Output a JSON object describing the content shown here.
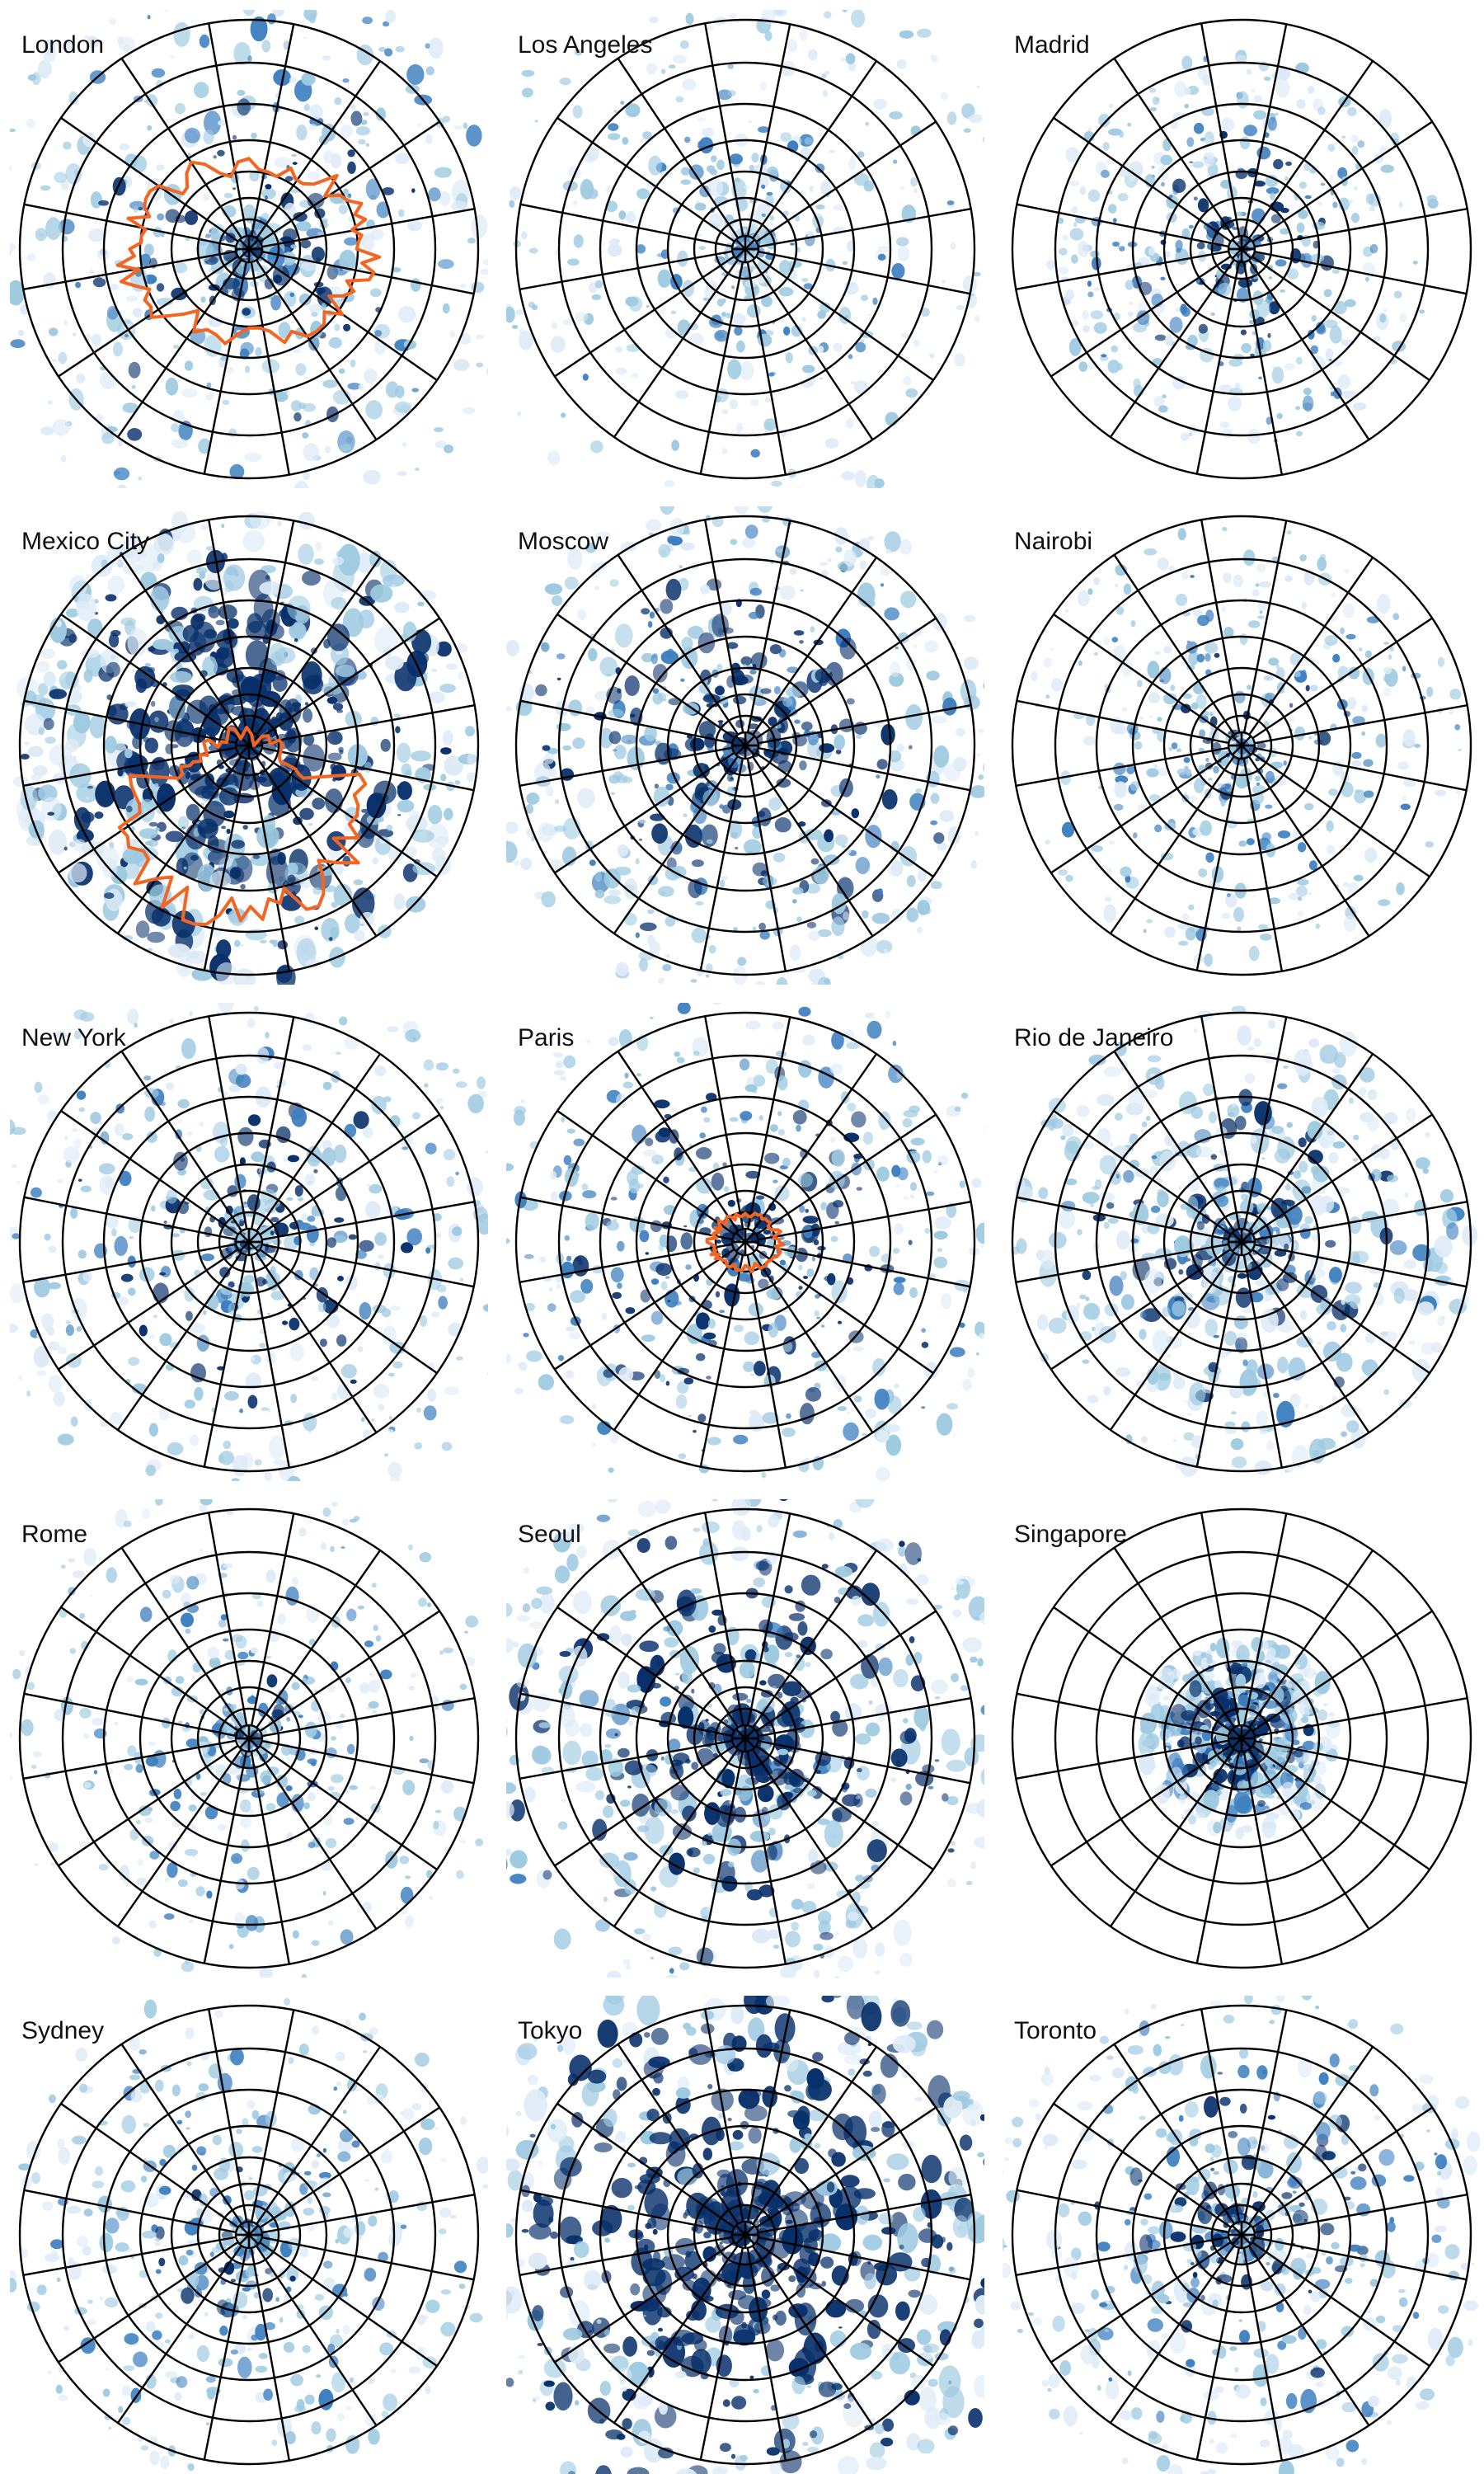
{
  "colors": {
    "dense": "#08306b",
    "mid": "#3d7fc0",
    "light": "#9ecae1",
    "faint": "#deebf7",
    "grid": "#000000",
    "boundary": "#f26522"
  },
  "cities": [
    {
      "name": "London",
      "density": 0.55,
      "spread": 0.95,
      "core": 0.55,
      "boundary": "large"
    },
    {
      "name": "Los Angeles",
      "density": 0.35,
      "spread": 0.95,
      "core": 0.3,
      "boundary": "none"
    },
    {
      "name": "Madrid",
      "density": 0.3,
      "spread": 0.6,
      "core": 0.75,
      "boundary": "none"
    },
    {
      "name": "Mexico City",
      "density": 0.9,
      "spread": 0.75,
      "core": 0.95,
      "boundary": "south"
    },
    {
      "name": "Moscow",
      "density": 0.55,
      "spread": 0.85,
      "core": 0.9,
      "boundary": "none"
    },
    {
      "name": "Nairobi",
      "density": 0.25,
      "spread": 0.7,
      "core": 0.6,
      "boundary": "none"
    },
    {
      "name": "New York",
      "density": 0.45,
      "spread": 0.95,
      "core": 0.6,
      "boundary": "none"
    },
    {
      "name": "Paris",
      "density": 0.45,
      "spread": 0.9,
      "core": 0.85,
      "boundary": "small"
    },
    {
      "name": "Rio de Janeiro",
      "density": 0.6,
      "spread": 0.75,
      "core": 0.45,
      "boundary": "none"
    },
    {
      "name": "Rome",
      "density": 0.25,
      "spread": 0.85,
      "core": 0.45,
      "boundary": "none"
    },
    {
      "name": "Seoul",
      "density": 0.7,
      "spread": 0.95,
      "core": 0.75,
      "boundary": "none"
    },
    {
      "name": "Singapore",
      "density": 0.5,
      "spread": 0.2,
      "core": 0.9,
      "boundary": "none"
    },
    {
      "name": "Sydney",
      "density": 0.35,
      "spread": 0.8,
      "core": 0.45,
      "boundary": "none"
    },
    {
      "name": "Tokyo",
      "density": 0.95,
      "spread": 1.0,
      "core": 0.95,
      "boundary": "none"
    },
    {
      "name": "Toronto",
      "density": 0.45,
      "spread": 0.85,
      "core": 0.55,
      "boundary": "none"
    }
  ]
}
